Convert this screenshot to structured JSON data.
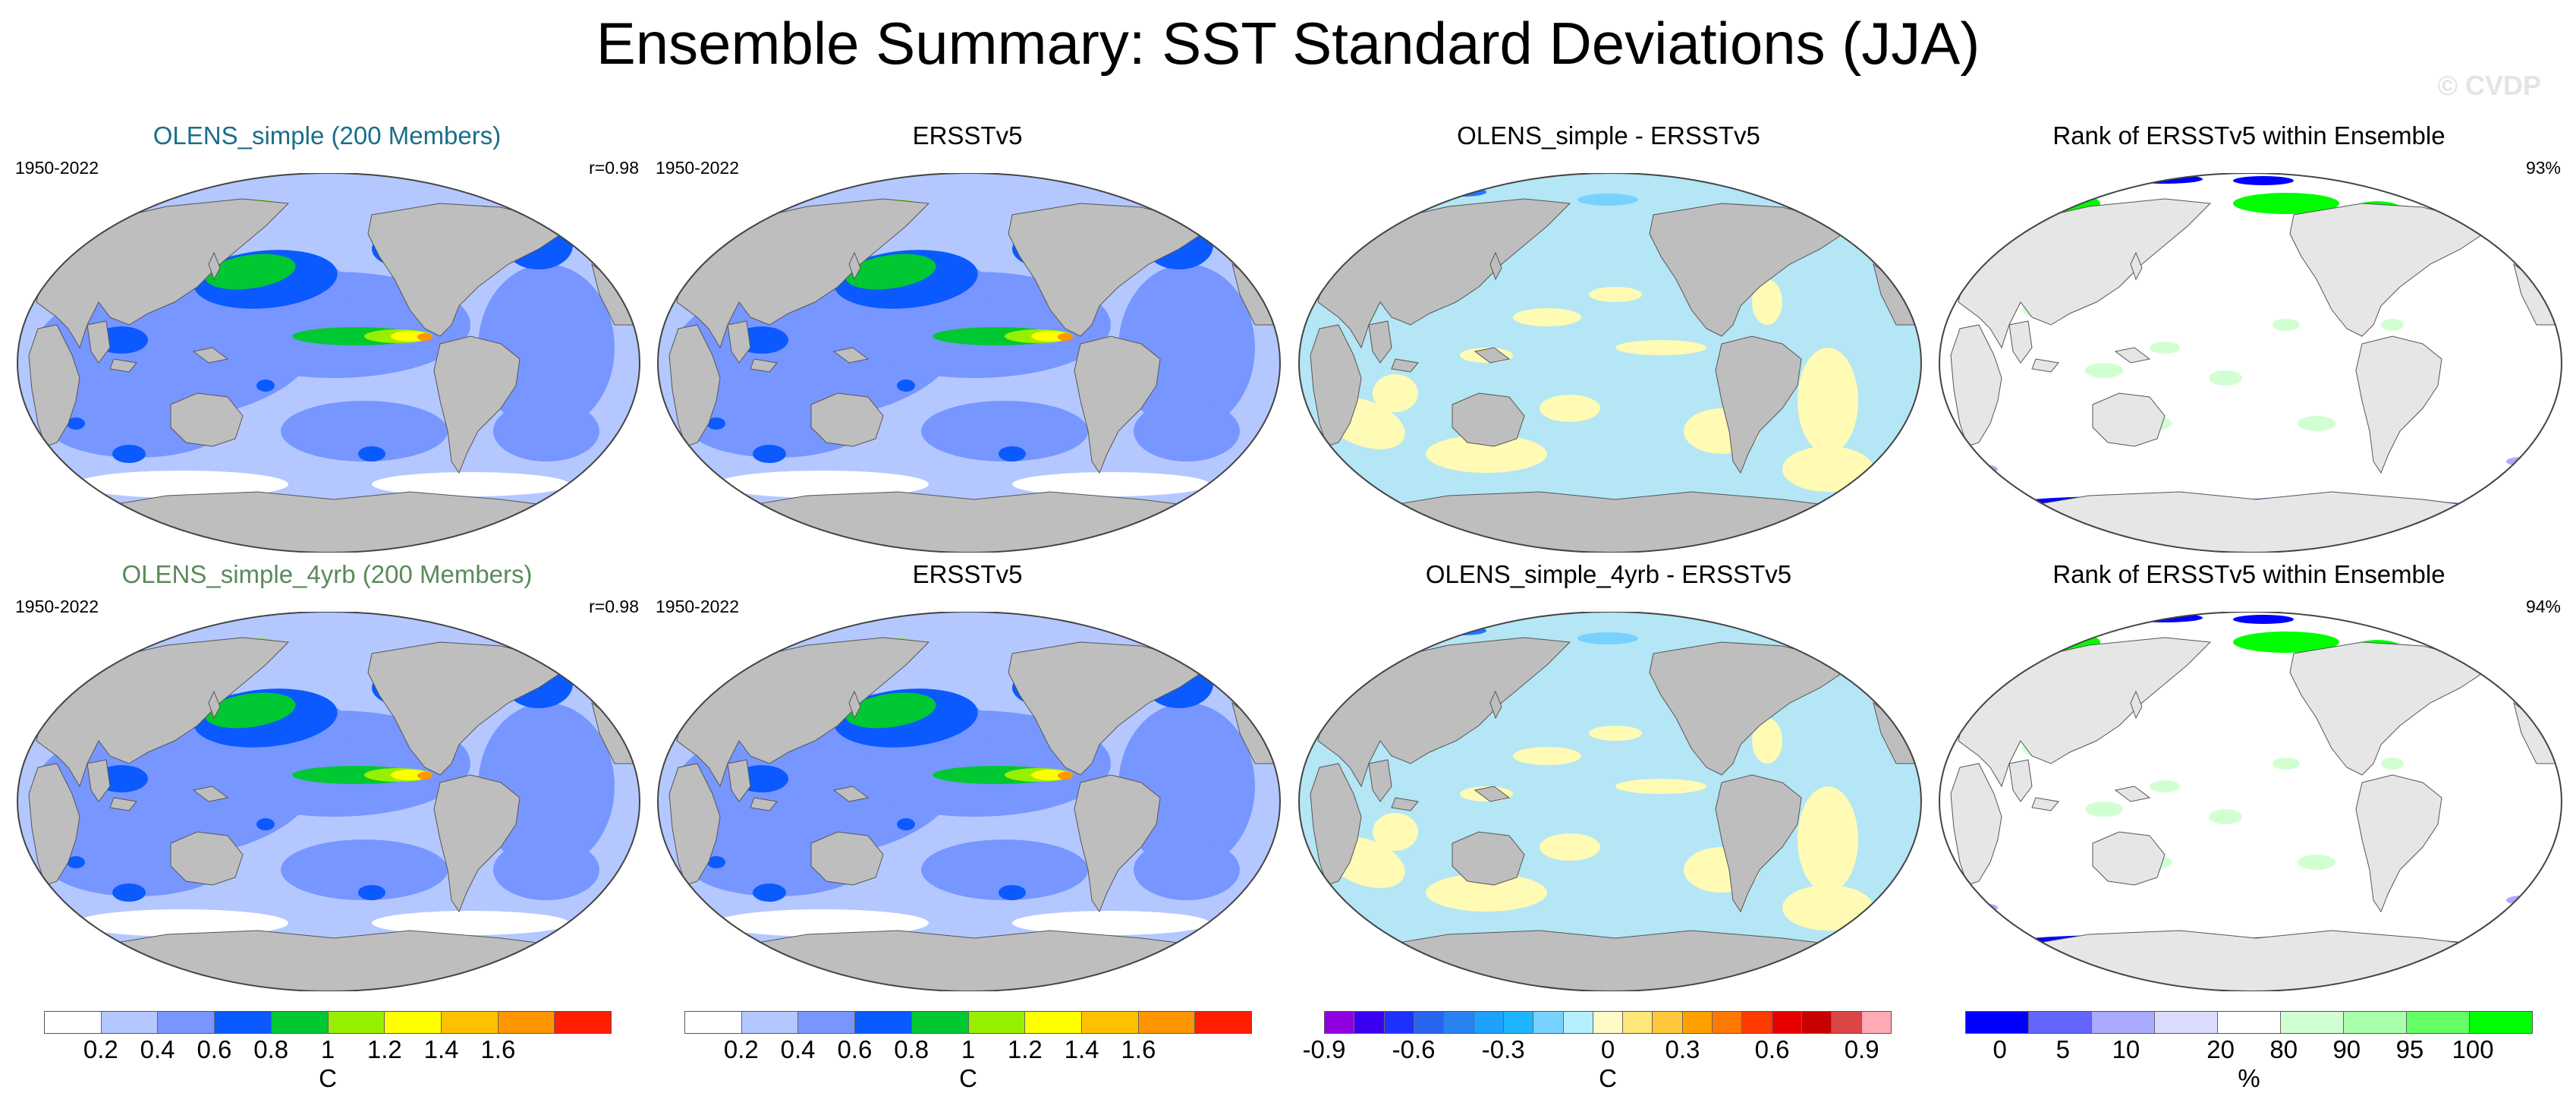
{
  "figure": {
    "title": "Ensemble Summary: SST Standard Deviations (JJA)",
    "watermark": "© CVDP"
  },
  "rows": [
    {
      "panels": [
        {
          "title": "OLENS_simple (200 Members)",
          "left": "1950-2022",
          "right": "r=0.98",
          "type": "stddev",
          "color": "#1a6e8a"
        },
        {
          "title": "ERSSTv5",
          "left": "1950-2022",
          "right": "",
          "type": "stddev"
        },
        {
          "title": "OLENS_simple - ERSSTv5",
          "left": "",
          "right": "",
          "type": "diff"
        },
        {
          "title": "Rank of ERSSTv5 within Ensemble",
          "left": "",
          "right": "93%",
          "type": "rank"
        }
      ]
    },
    {
      "panels": [
        {
          "title": "OLENS_simple_4yrb (200 Members)",
          "left": "1950-2022",
          "right": "r=0.98",
          "type": "stddev",
          "color": "#5a8a5a"
        },
        {
          "title": "ERSSTv5",
          "left": "1950-2022",
          "right": "",
          "type": "stddev"
        },
        {
          "title": "OLENS_simple_4yrb - ERSSTv5",
          "left": "",
          "right": "",
          "type": "diff"
        },
        {
          "title": "Rank of ERSSTv5 within Ensemble",
          "left": "",
          "right": "94%",
          "type": "rank"
        }
      ]
    }
  ],
  "colorbars": [
    {
      "unit": "C",
      "colors": [
        "#ffffff",
        "#b4c8ff",
        "#7896ff",
        "#0a5aff",
        "#00c832",
        "#96f000",
        "#ffff00",
        "#ffc000",
        "#ff9600",
        "#ff1e00"
      ],
      "labels": [
        "0.2",
        "0.4",
        "0.6",
        "0.8",
        "1",
        "1.2",
        "1.4",
        "1.6"
      ]
    },
    {
      "unit": "C",
      "colors": [
        "#ffffff",
        "#b4c8ff",
        "#7896ff",
        "#0a5aff",
        "#00c832",
        "#96f000",
        "#ffff00",
        "#ffc000",
        "#ff9600",
        "#ff1e00"
      ],
      "labels": [
        "0.2",
        "0.4",
        "0.6",
        "0.8",
        "1",
        "1.2",
        "1.4",
        "1.6"
      ]
    },
    {
      "unit": "C",
      "colors": [
        "#9000e0",
        "#3c00f0",
        "#1e32ff",
        "#2864f0",
        "#2a82f0",
        "#1ea0ff",
        "#1eb4ff",
        "#78d2ff",
        "#b4f0ff",
        "#fffac8",
        "#ffe678",
        "#ffc83c",
        "#ffa000",
        "#ff7800",
        "#ff3c00",
        "#e60000",
        "#c80000",
        "#dc4646",
        "#ffaab4"
      ],
      "labels": [
        "-0.9",
        "-0.6",
        "-0.3",
        "0",
        "0.3",
        "0.6",
        "0.9"
      ]
    },
    {
      "unit": "%",
      "colors": [
        "#0000ff",
        "#6464ff",
        "#aaaaff",
        "#dcdcff",
        "#ffffff",
        "#d2ffd2",
        "#aaffaa",
        "#64ff64",
        "#00ff00"
      ],
      "labels": [
        "0",
        "5",
        "10",
        "20",
        "80",
        "90",
        "95",
        "100"
      ]
    }
  ]
}
